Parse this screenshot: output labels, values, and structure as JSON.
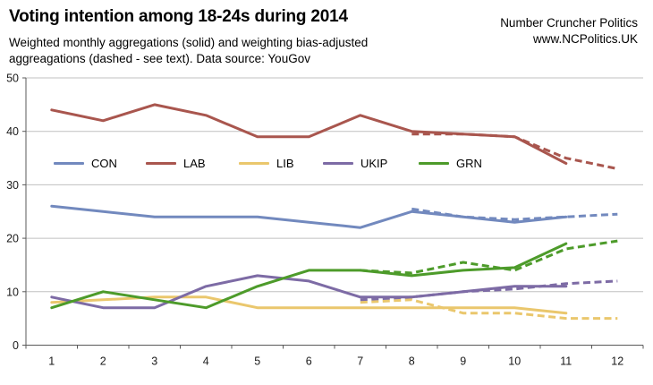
{
  "header": {
    "title": "Voting intention among 18-24s during 2014",
    "subtitle_line1": "Weighted monthly aggregations (solid) and weighting bias-adjusted",
    "subtitle_line2": "aggreagations (dashed - see text). Data source: YouGov",
    "brand_line1": "Number Cruncher Politics",
    "brand_line2": "www.NCPolitics.UK"
  },
  "chart_data": {
    "type": "line",
    "title": "Voting intention among 18-24s during 2014",
    "xlabel": "",
    "ylabel": "",
    "x_months": [
      1,
      2,
      3,
      4,
      5,
      6,
      7,
      8,
      9,
      10,
      11,
      12
    ],
    "ylim": [
      0,
      50
    ],
    "yticks": [
      0,
      10,
      20,
      30,
      40,
      50
    ],
    "grid": "horizontal",
    "legend_position": "inside-upper-left",
    "legend": [
      "CON",
      "LAB",
      "LIB",
      "UKIP",
      "GRN"
    ],
    "axis_color": "#595959",
    "gridline_color": "#c0c0c0",
    "series": [
      {
        "name": "CON",
        "color": "#7289be",
        "style": "solid",
        "start_month": 1,
        "values": [
          26,
          25,
          24,
          24,
          24,
          23,
          22,
          25,
          24,
          23,
          24
        ]
      },
      {
        "name": "CON (bias-adjusted, dashed)",
        "color": "#7289be",
        "style": "dashed",
        "start_month": 8,
        "values": [
          25.5,
          24,
          23.5,
          24,
          24.5
        ]
      },
      {
        "name": "LAB",
        "color": "#a9564e",
        "style": "solid",
        "start_month": 1,
        "values": [
          44,
          42,
          45,
          43,
          39,
          39,
          43,
          40,
          39.5,
          39,
          34
        ]
      },
      {
        "name": "LAB (bias-adjusted, dashed)",
        "color": "#a9564e",
        "style": "dashed",
        "start_month": 8,
        "values": [
          39.5,
          39.5,
          39,
          35,
          33
        ]
      },
      {
        "name": "LIB",
        "color": "#eac76d",
        "style": "solid",
        "start_month": 1,
        "values": [
          8,
          8.5,
          9,
          9,
          7,
          7,
          7,
          7,
          7,
          7,
          6
        ]
      },
      {
        "name": "LIB (bias-adjusted, dashed)",
        "color": "#eac76d",
        "style": "dashed",
        "start_month": 7,
        "values": [
          8,
          8.5,
          6,
          6,
          5,
          5
        ]
      },
      {
        "name": "UKIP",
        "color": "#7d6ba5",
        "style": "solid",
        "start_month": 1,
        "values": [
          9,
          7,
          7,
          11,
          13,
          12,
          9,
          9,
          10,
          11,
          11
        ]
      },
      {
        "name": "UKIP (bias-adjusted, dashed)",
        "color": "#7d6ba5",
        "style": "dashed",
        "start_month": 7,
        "values": [
          8.5,
          9,
          10,
          10.5,
          11.5,
          12
        ]
      },
      {
        "name": "GRN",
        "color": "#4d9b2a",
        "style": "solid",
        "start_month": 1,
        "values": [
          7,
          10,
          8.5,
          7,
          11,
          14,
          14,
          13,
          14,
          14.5,
          19
        ]
      },
      {
        "name": "GRN (bias-adjusted, dashed)",
        "color": "#4d9b2a",
        "style": "dashed",
        "start_month": 7,
        "values": [
          14,
          13.5,
          15.5,
          14,
          18,
          19.5
        ]
      }
    ]
  }
}
